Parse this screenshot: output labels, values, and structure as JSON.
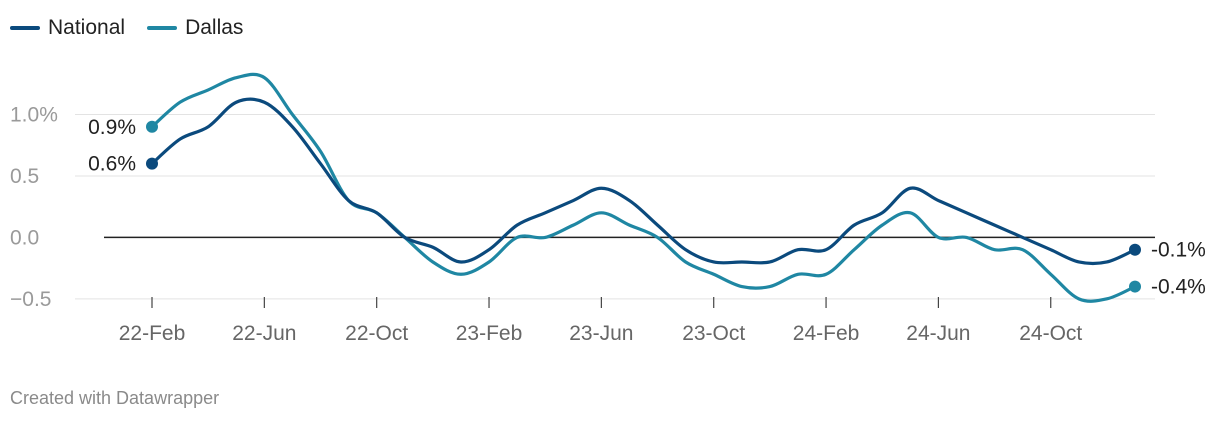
{
  "footer": "Created with Datawrapper",
  "chart_data": {
    "type": "line",
    "title": "",
    "xlabel": "",
    "ylabel": "",
    "x_tick_labels": [
      "22-Feb",
      "22-Jun",
      "22-Oct",
      "23-Feb",
      "23-Jun",
      "23-Oct",
      "24-Feb",
      "24-Jun",
      "24-Oct"
    ],
    "y_ticks": [
      1.0,
      0.5,
      0.0,
      -0.5
    ],
    "y_tick_labels": [
      "1.0%",
      "0.5",
      "0.0",
      "−0.5"
    ],
    "ylim": [
      -0.55,
      1.35
    ],
    "x": [
      "2022-02",
      "2022-03",
      "2022-04",
      "2022-05",
      "2022-06",
      "2022-07",
      "2022-08",
      "2022-09",
      "2022-10",
      "2022-11",
      "2022-12",
      "2023-01",
      "2023-02",
      "2023-03",
      "2023-04",
      "2023-05",
      "2023-06",
      "2023-07",
      "2023-08",
      "2023-09",
      "2023-10",
      "2023-11",
      "2023-12",
      "2024-01",
      "2024-02",
      "2024-03",
      "2024-04",
      "2024-05",
      "2024-06",
      "2024-07",
      "2024-08",
      "2024-09",
      "2024-10",
      "2024-11",
      "2024-12",
      "2025-01"
    ],
    "series": [
      {
        "name": "National",
        "color": "#0b4a7d",
        "values": [
          0.6,
          0.8,
          0.9,
          1.1,
          1.1,
          0.9,
          0.6,
          0.3,
          0.2,
          0.0,
          -0.08,
          -0.2,
          -0.1,
          0.1,
          0.2,
          0.3,
          0.4,
          0.3,
          0.1,
          -0.1,
          -0.2,
          -0.2,
          -0.2,
          -0.1,
          -0.1,
          0.1,
          0.2,
          0.4,
          0.3,
          0.2,
          0.1,
          0.0,
          -0.1,
          -0.2,
          -0.2,
          -0.1
        ],
        "end_labels": {
          "start": "0.6%",
          "end": "-0.1%"
        }
      },
      {
        "name": "Dallas",
        "color": "#1f87a3",
        "values": [
          0.9,
          1.1,
          1.2,
          1.3,
          1.3,
          1.0,
          0.7,
          0.3,
          0.2,
          0.0,
          -0.2,
          -0.3,
          -0.2,
          0.0,
          0.0,
          0.1,
          0.2,
          0.1,
          0.0,
          -0.2,
          -0.3,
          -0.4,
          -0.4,
          -0.3,
          -0.3,
          -0.1,
          0.1,
          0.2,
          0.0,
          0.0,
          -0.1,
          -0.1,
          -0.3,
          -0.5,
          -0.5,
          -0.4
        ],
        "end_labels": {
          "start": "0.9%",
          "end": "-0.4%"
        }
      }
    ],
    "grid": true,
    "legend": "top-left"
  }
}
